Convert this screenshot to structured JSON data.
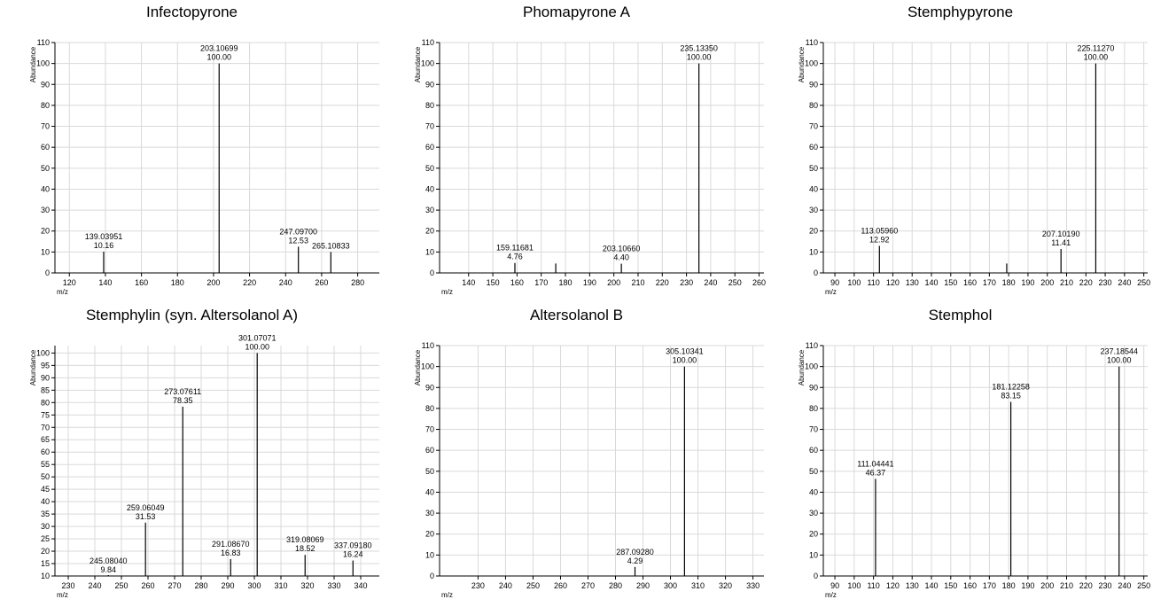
{
  "chart_data": [
    {
      "type": "bar",
      "title": "Infectopyrone",
      "xlabel": "m/z",
      "ylabel": "Abundance",
      "xlim": [
        112,
        292
      ],
      "ylim": [
        0,
        110
      ],
      "xticks": [
        120,
        140,
        160,
        180,
        200,
        220,
        240,
        260,
        280
      ],
      "yticks": [
        0,
        10,
        20,
        30,
        40,
        50,
        60,
        70,
        80,
        90,
        100,
        110
      ],
      "grid": true,
      "peaks": [
        {
          "x": 139.03951,
          "y": 10.16,
          "mz_label": "139.03951",
          "int_label": "10.16"
        },
        {
          "x": 203.10699,
          "y": 100.0,
          "mz_label": "203.10699",
          "int_label": "100.00"
        },
        {
          "x": 247.097,
          "y": 12.53,
          "mz_label": "247.09700",
          "int_label": "12.53"
        },
        {
          "x": 265.10833,
          "y": 10.0,
          "mz_label": "265.10833",
          "int_label": ""
        }
      ]
    },
    {
      "type": "bar",
      "title": "Phomapyrone A",
      "xlabel": "m/z",
      "ylabel": "Abundance",
      "xlim": [
        128,
        262
      ],
      "ylim": [
        0,
        110
      ],
      "xticks": [
        140,
        150,
        160,
        170,
        180,
        190,
        200,
        210,
        220,
        230,
        240,
        250,
        260
      ],
      "yticks": [
        0,
        10,
        20,
        30,
        40,
        50,
        60,
        70,
        80,
        90,
        100,
        110
      ],
      "grid": true,
      "peaks": [
        {
          "x": 159.11681,
          "y": 4.76,
          "mz_label": "159.11681",
          "int_label": "4.76"
        },
        {
          "x": 176.0,
          "y": 4.5,
          "mz_label": "",
          "int_label": ""
        },
        {
          "x": 203.1066,
          "y": 4.4,
          "mz_label": "203.10660",
          "int_label": "4.40"
        },
        {
          "x": 235.1335,
          "y": 100.0,
          "mz_label": "235.13350",
          "int_label": "100.00"
        }
      ]
    },
    {
      "type": "bar",
      "title": "Stemphypyrone",
      "xlabel": "m/z",
      "ylabel": "Abundance",
      "xlim": [
        84,
        252
      ],
      "ylim": [
        0,
        110
      ],
      "xticks": [
        90,
        100,
        110,
        120,
        130,
        140,
        150,
        160,
        170,
        180,
        190,
        200,
        210,
        220,
        230,
        240,
        250
      ],
      "yticks": [
        0,
        10,
        20,
        30,
        40,
        50,
        60,
        70,
        80,
        90,
        100,
        110
      ],
      "grid": true,
      "peaks": [
        {
          "x": 113.0596,
          "y": 12.92,
          "mz_label": "113.05960",
          "int_label": "12.92"
        },
        {
          "x": 179.0,
          "y": 4.5,
          "mz_label": "",
          "int_label": ""
        },
        {
          "x": 207.1019,
          "y": 11.41,
          "mz_label": "207.10190",
          "int_label": "11.41"
        },
        {
          "x": 225.1127,
          "y": 100.0,
          "mz_label": "225.11270",
          "int_label": "100.00"
        }
      ]
    },
    {
      "type": "bar",
      "title": "Stemphylin (syn. Altersolanol A)",
      "xlabel": "m/z",
      "ylabel": "Abundance",
      "xlim": [
        225,
        347
      ],
      "ylim": [
        10,
        103
      ],
      "xticks": [
        230,
        240,
        250,
        260,
        270,
        280,
        290,
        300,
        310,
        320,
        330,
        340
      ],
      "yticks": [
        10,
        15,
        20,
        25,
        30,
        35,
        40,
        45,
        50,
        55,
        60,
        65,
        70,
        75,
        80,
        85,
        90,
        95,
        100
      ],
      "grid": true,
      "peaks": [
        {
          "x": 245.0804,
          "y": 9.84,
          "mz_label": "245.08040",
          "int_label": "9.84"
        },
        {
          "x": 259.06049,
          "y": 31.53,
          "mz_label": "259.06049",
          "int_label": "31.53"
        },
        {
          "x": 273.07611,
          "y": 78.35,
          "mz_label": "273.07611",
          "int_label": "78.35"
        },
        {
          "x": 291.0867,
          "y": 16.83,
          "mz_label": "291.08670",
          "int_label": "16.83"
        },
        {
          "x": 301.07071,
          "y": 100.0,
          "mz_label": "301.07071",
          "int_label": "100.00"
        },
        {
          "x": 319.08069,
          "y": 18.52,
          "mz_label": "319.08069",
          "int_label": "18.52"
        },
        {
          "x": 337.0918,
          "y": 16.24,
          "mz_label": "337.09180",
          "int_label": "16.24"
        }
      ]
    },
    {
      "type": "bar",
      "title": "Altersolanol B",
      "xlabel": "m/z",
      "ylabel": "Abundance",
      "xlim": [
        216,
        334
      ],
      "ylim": [
        0,
        110
      ],
      "xticks": [
        230,
        240,
        250,
        260,
        270,
        280,
        290,
        300,
        310,
        320,
        330
      ],
      "yticks": [
        0,
        10,
        20,
        30,
        40,
        50,
        60,
        70,
        80,
        90,
        100,
        110
      ],
      "grid": true,
      "peaks": [
        {
          "x": 287.0928,
          "y": 4.29,
          "mz_label": "287.09280",
          "int_label": "4.29"
        },
        {
          "x": 305.10341,
          "y": 100.0,
          "mz_label": "305.10341",
          "int_label": "100.00"
        }
      ]
    },
    {
      "type": "bar",
      "title": "Stemphol",
      "xlabel": "m/z",
      "ylabel": "Abundance",
      "xlim": [
        84,
        252
      ],
      "ylim": [
        0,
        110
      ],
      "xticks": [
        90,
        100,
        110,
        120,
        130,
        140,
        150,
        160,
        170,
        180,
        190,
        200,
        210,
        220,
        230,
        240,
        250
      ],
      "yticks": [
        0,
        10,
        20,
        30,
        40,
        50,
        60,
        70,
        80,
        90,
        100,
        110
      ],
      "grid": true,
      "peaks": [
        {
          "x": 111.04441,
          "y": 46.37,
          "mz_label": "111.04441",
          "int_label": "46.37"
        },
        {
          "x": 181.12258,
          "y": 83.15,
          "mz_label": "181.12258",
          "int_label": "83.15"
        },
        {
          "x": 237.18544,
          "y": 100.0,
          "mz_label": "237.18544",
          "int_label": "100.00"
        }
      ]
    }
  ]
}
